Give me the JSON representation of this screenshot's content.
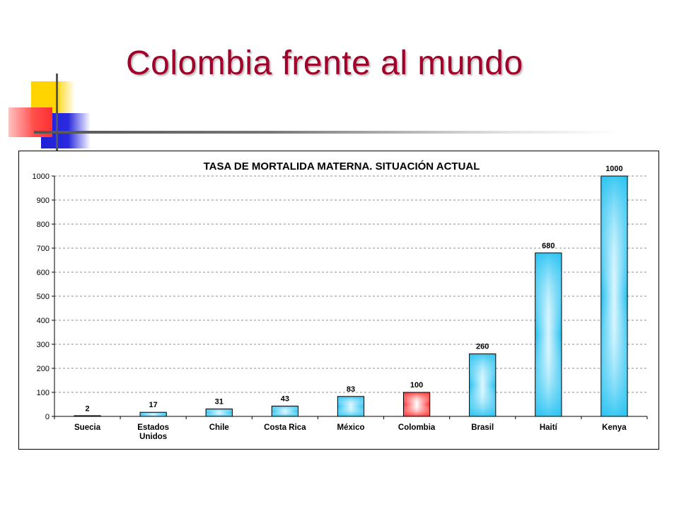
{
  "slide": {
    "title": "Colombia frente al mundo"
  },
  "colors": {
    "title": "#a0002a",
    "bar": "#33c6f0",
    "bar_highlight": "#ff3333"
  },
  "chart_data": {
    "type": "bar",
    "title": "TASA DE MORTALIDA MATERNA. SITUACIÓN ACTUAL",
    "xlabel": "",
    "ylabel": "",
    "ylim": [
      0,
      1000
    ],
    "yticks": [
      0,
      100,
      200,
      300,
      400,
      500,
      600,
      700,
      800,
      900,
      1000
    ],
    "grid": true,
    "categories": [
      [
        "Suecia"
      ],
      [
        "Estados",
        "Unidos"
      ],
      [
        "Chile"
      ],
      [
        "Costa Rica"
      ],
      [
        "México"
      ],
      [
        "Colombia"
      ],
      [
        "Brasil"
      ],
      [
        "Haití"
      ],
      [
        "Kenya"
      ]
    ],
    "values": [
      2,
      17,
      31,
      43,
      83,
      100,
      260,
      680,
      1000
    ],
    "highlight_category": "Colombia"
  }
}
